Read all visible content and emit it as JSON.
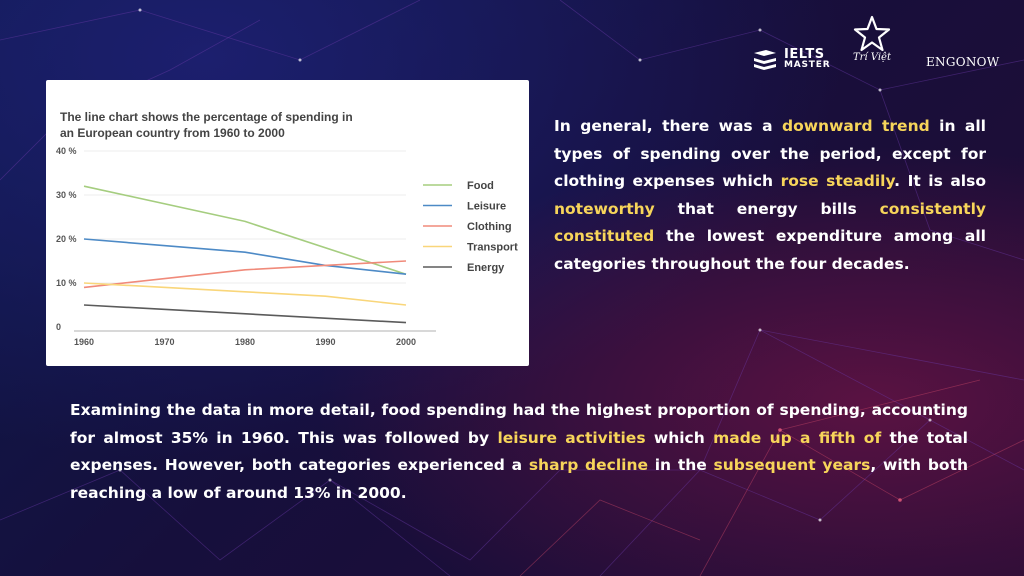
{
  "brands": {
    "ielts_line1": "IELTS",
    "ielts_line2": "MASTER",
    "triviet": "Trí Việt",
    "engonow": "ENGONOW"
  },
  "chart_data": {
    "type": "line",
    "title_lines": [
      "The line chart shows the percentage of spending in",
      "an European country from 1960 to 2000"
    ],
    "x": [
      1960,
      1970,
      1980,
      1990,
      2000
    ],
    "x_ticks": [
      "1960",
      "1970",
      "1980",
      "1990",
      "2000"
    ],
    "y_ticks": [
      "0",
      "10 %",
      "20 %",
      "30 %",
      "40 %"
    ],
    "y_tick_values": [
      0,
      10,
      20,
      30,
      40
    ],
    "ylim": [
      0,
      40
    ],
    "grid": true,
    "legend_position": "right",
    "series": [
      {
        "name": "Food",
        "color": "#a5cd7f",
        "x": [
          1960,
          1980,
          2000
        ],
        "values": [
          32,
          24,
          12
        ]
      },
      {
        "name": "Leisure",
        "color": "#4d8ac6",
        "x": [
          1960,
          1980,
          1990,
          2000
        ],
        "values": [
          20,
          17,
          14,
          12
        ]
      },
      {
        "name": "Clothing",
        "color": "#f08a7a",
        "x": [
          1960,
          1980,
          2000
        ],
        "values": [
          9,
          13,
          15
        ]
      },
      {
        "name": "Transport",
        "color": "#f9d67a",
        "x": [
          1960,
          1980,
          1990,
          2000
        ],
        "values": [
          10,
          8,
          7,
          5
        ]
      },
      {
        "name": "Energy",
        "color": "#5b5b5b",
        "x": [
          1960,
          2000
        ],
        "values": [
          5,
          1
        ]
      }
    ]
  },
  "paragraph1": [
    {
      "t": "In general, there was a "
    },
    {
      "t": "downward trend",
      "hl": true
    },
    {
      "t": " in all types of spending over the period, except for clothing expenses which "
    },
    {
      "t": "rose steadily",
      "hl": true
    },
    {
      "t": ". It is also "
    },
    {
      "t": "noteworthy",
      "hl": true
    },
    {
      "t": " that energy bills "
    },
    {
      "t": "consistently constituted",
      "hl": true
    },
    {
      "t": " the lowest expenditure among all categories throughout the four decades."
    }
  ],
  "paragraph2": [
    {
      "t": "Examining the data in more detail, food spending had the highest proportion of spending, accounting for almost 35% in 1960. This was followed by "
    },
    {
      "t": "leisure activities",
      "hl": true
    },
    {
      "t": " which "
    },
    {
      "t": "made up a fifth of",
      "hl": true
    },
    {
      "t": " the total expenses. However, both categories experienced a "
    },
    {
      "t": "sharp decline",
      "hl": true
    },
    {
      "t": " in the "
    },
    {
      "t": "subsequent years",
      "hl": true
    },
    {
      "t": ", with both reaching a low of around 13% in 2000."
    }
  ],
  "colors": {
    "highlight": "#f7d55a",
    "text": "#ffffff"
  }
}
